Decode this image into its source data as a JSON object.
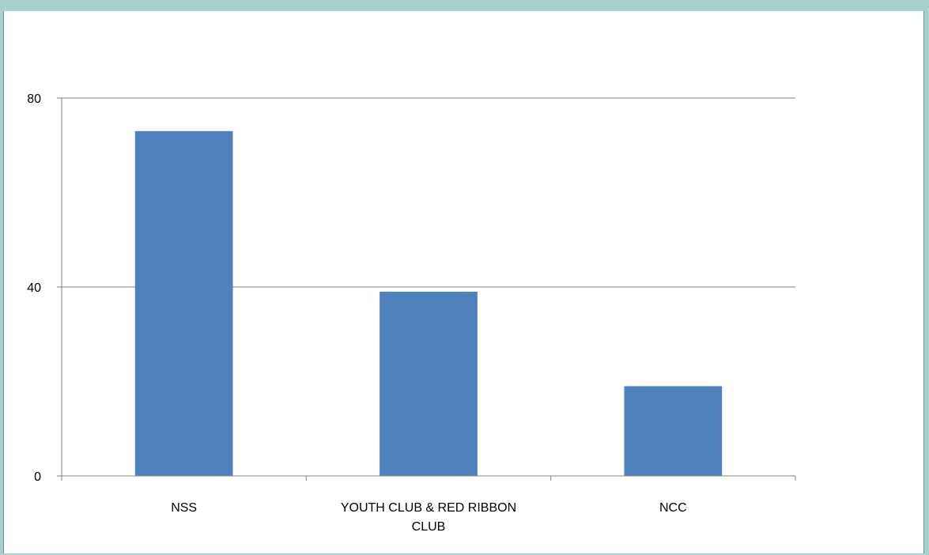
{
  "chart_data": {
    "type": "bar",
    "categories": [
      [
        "NSS"
      ],
      [
        "YOUTH CLUB & RED RIBBON",
        "CLUB"
      ],
      [
        "NCC"
      ]
    ],
    "values": [
      73,
      39,
      19
    ],
    "ylim": [
      0,
      80
    ],
    "yticks": [
      0,
      40,
      80
    ],
    "grid": true,
    "title": "",
    "xlabel": "",
    "ylabel": "",
    "colors": {
      "bar": "#4f81bd",
      "grid": "#868686",
      "axis": "#868686",
      "background": "#a8d0cd"
    }
  }
}
